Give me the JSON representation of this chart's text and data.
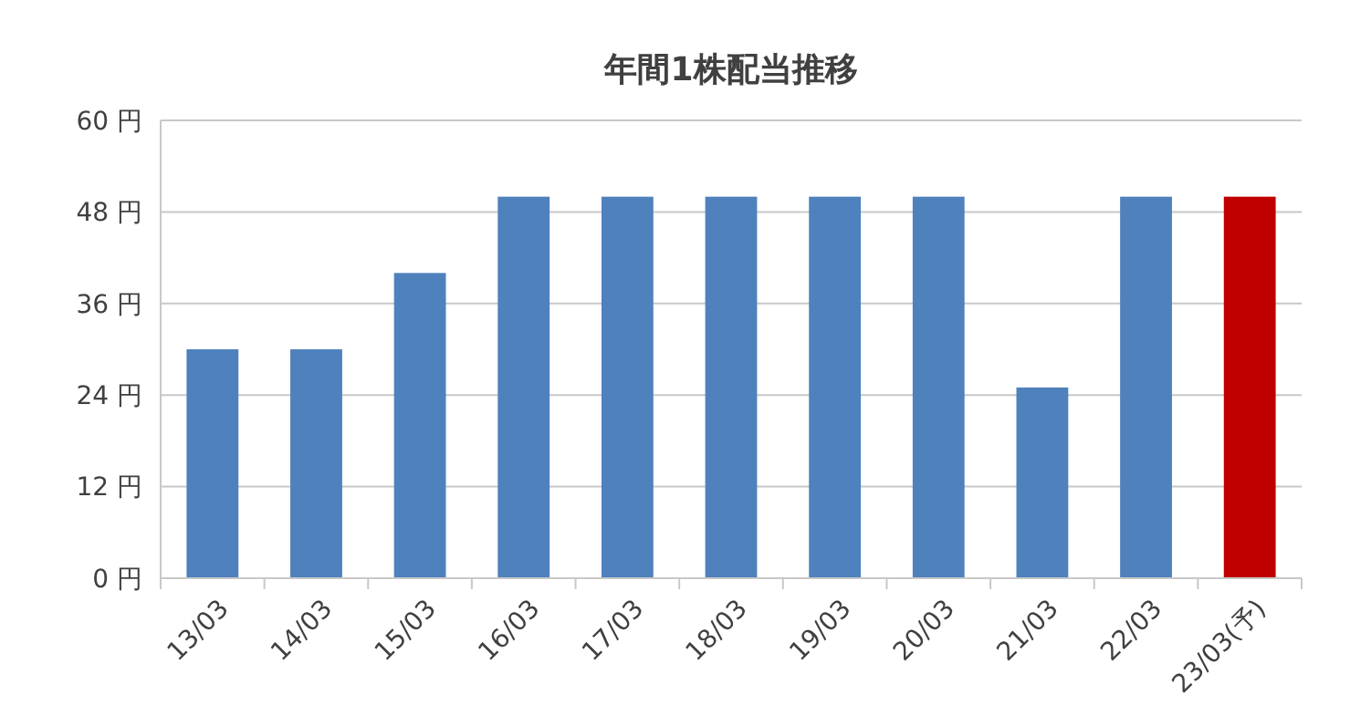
{
  "chart_data": {
    "type": "bar",
    "title": "年間1株配当推移",
    "categories": [
      "13/03",
      "14/03",
      "15/03",
      "16/03",
      "17/03",
      "18/03",
      "19/03",
      "20/03",
      "21/03",
      "22/03",
      "23/03(予)"
    ],
    "values": [
      30,
      30,
      40,
      50,
      50,
      50,
      50,
      50,
      25,
      50,
      50
    ],
    "colors": [
      "#4f81bd",
      "#4f81bd",
      "#4f81bd",
      "#4f81bd",
      "#4f81bd",
      "#4f81bd",
      "#4f81bd",
      "#4f81bd",
      "#4f81bd",
      "#4f81bd",
      "#c00000"
    ],
    "ylim": [
      0,
      60
    ],
    "yticks": [
      {
        "value": 0,
        "label": "0 円"
      },
      {
        "value": 12,
        "label": "12 円"
      },
      {
        "value": 24,
        "label": "24 円"
      },
      {
        "value": 36,
        "label": "36 円"
      },
      {
        "value": 48,
        "label": "48 円"
      },
      {
        "value": 60,
        "label": "60 円"
      }
    ],
    "grid": "y"
  }
}
